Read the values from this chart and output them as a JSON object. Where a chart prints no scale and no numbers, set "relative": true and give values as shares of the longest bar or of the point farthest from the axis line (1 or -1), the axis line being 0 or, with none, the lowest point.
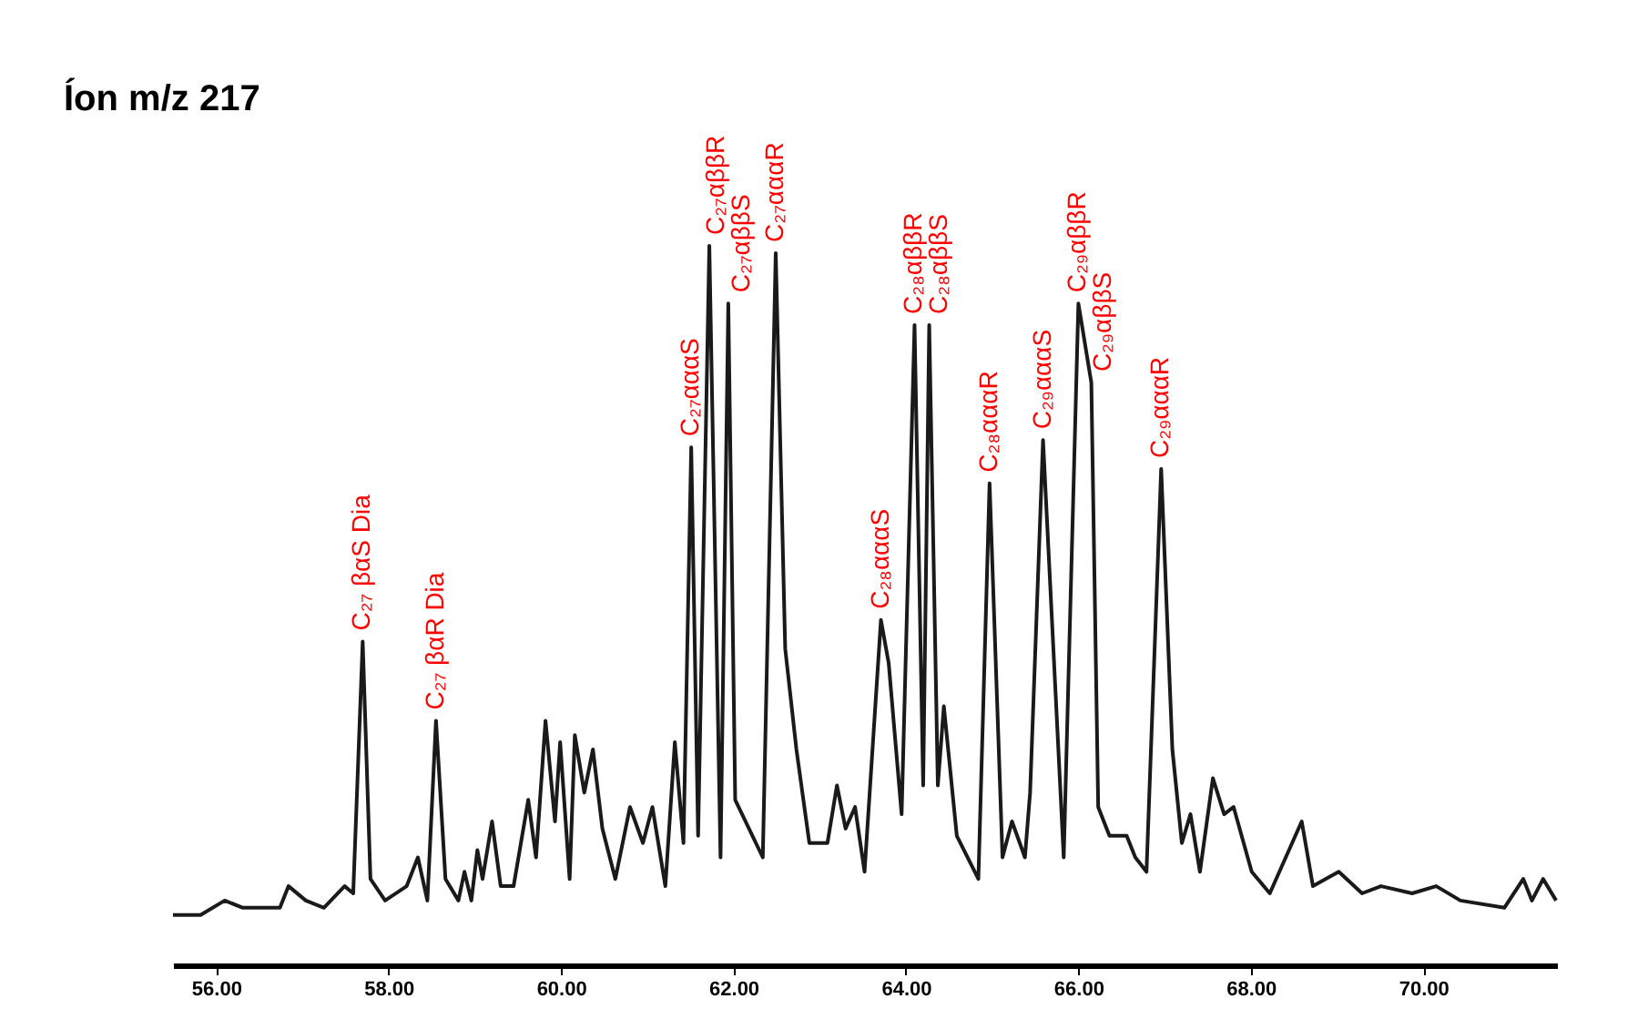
{
  "chart_data": {
    "type": "line",
    "title": "Íon m/z 217",
    "relative": true,
    "color": "#1a1a1a",
    "grid": false,
    "marker": "none",
    "line_style": "solid",
    "xlim": [
      55.5,
      71.55
    ],
    "xticks": [
      {
        "value": 56,
        "label": "56.00"
      },
      {
        "value": 58,
        "label": "58.00"
      },
      {
        "value": 60,
        "label": "60.00"
      },
      {
        "value": 62,
        "label": "62.00"
      },
      {
        "value": 64,
        "label": "64.00"
      },
      {
        "value": 66,
        "label": "66.00"
      },
      {
        "value": 68,
        "label": "68.00"
      },
      {
        "value": 70,
        "label": "70.00"
      }
    ],
    "tick_labels": "x",
    "x": [
      55.5,
      55.82,
      56.1,
      56.31,
      56.52,
      56.74,
      56.84,
      57.04,
      57.25,
      57.49,
      57.59,
      57.7,
      57.79,
      57.96,
      58.21,
      58.34,
      58.45,
      58.55,
      58.66,
      58.81,
      58.88,
      58.96,
      59.03,
      59.09,
      59.2,
      59.3,
      59.45,
      59.62,
      59.71,
      59.82,
      59.93,
      59.99,
      60.1,
      60.16,
      60.27,
      60.37,
      60.48,
      60.63,
      60.8,
      60.95,
      61.06,
      61.21,
      61.32,
      61.42,
      61.51,
      61.59,
      61.72,
      61.85,
      61.94,
      62.02,
      62.34,
      62.49,
      62.6,
      62.73,
      62.88,
      63.09,
      63.2,
      63.3,
      63.41,
      63.52,
      63.71,
      63.8,
      63.95,
      64.1,
      64.2,
      64.27,
      64.37,
      64.44,
      64.59,
      64.84,
      64.97,
      65.12,
      65.23,
      65.38,
      65.44,
      65.59,
      65.83,
      66.0,
      66.15,
      66.23,
      66.36,
      66.56,
      66.66,
      66.79,
      66.96,
      67.09,
      67.2,
      67.3,
      67.41,
      67.56,
      67.69,
      67.8,
      68.01,
      68.22,
      68.59,
      68.72,
      69.02,
      69.29,
      69.51,
      69.87,
      70.15,
      70.43,
      70.94,
      71.16,
      71.26,
      71.39,
      71.54
    ],
    "values": [
      0.07,
      0.07,
      0.09,
      0.08,
      0.08,
      0.08,
      0.11,
      0.09,
      0.08,
      0.11,
      0.1,
      0.45,
      0.12,
      0.09,
      0.11,
      0.15,
      0.09,
      0.34,
      0.12,
      0.09,
      0.13,
      0.09,
      0.16,
      0.12,
      0.2,
      0.11,
      0.11,
      0.23,
      0.15,
      0.34,
      0.2,
      0.31,
      0.12,
      0.32,
      0.24,
      0.3,
      0.19,
      0.12,
      0.22,
      0.17,
      0.22,
      0.11,
      0.31,
      0.17,
      0.72,
      0.18,
      1.0,
      0.15,
      0.92,
      0.23,
      0.15,
      0.99,
      0.44,
      0.3,
      0.17,
      0.17,
      0.25,
      0.19,
      0.22,
      0.13,
      0.48,
      0.42,
      0.21,
      0.89,
      0.25,
      0.89,
      0.25,
      0.36,
      0.18,
      0.12,
      0.67,
      0.15,
      0.2,
      0.15,
      0.24,
      0.73,
      0.15,
      0.92,
      0.81,
      0.22,
      0.18,
      0.18,
      0.15,
      0.13,
      0.69,
      0.3,
      0.17,
      0.21,
      0.13,
      0.26,
      0.21,
      0.22,
      0.13,
      0.1,
      0.2,
      0.11,
      0.13,
      0.1,
      0.11,
      0.1,
      0.11,
      0.09,
      0.08,
      0.12,
      0.09,
      0.12,
      0.09
    ],
    "annotations": [
      {
        "text": "C₂₇ βαS Dia",
        "x": 57.7,
        "y": 0.45
      },
      {
        "text": "C₂₇ βαR Dia",
        "x": 58.55,
        "y": 0.34
      },
      {
        "text": "C₂₇αααS",
        "x": 61.51,
        "y": 0.72
      },
      {
        "text": "C₂₇αββR",
        "x": 61.72,
        "y": 1.0
      },
      {
        "text": "C₂₇αββS",
        "x": 61.94,
        "y": 0.92
      },
      {
        "text": "C₂₇αααR",
        "x": 62.49,
        "y": 0.99
      },
      {
        "text": "C₂₈αααS",
        "x": 63.71,
        "y": 0.48
      },
      {
        "text": "C₂₈αββR",
        "x": 64.1,
        "y": 0.89
      },
      {
        "text": "C₂₈αββS",
        "x": 64.27,
        "y": 0.89
      },
      {
        "text": "C₂₈αααR",
        "x": 64.97,
        "y": 0.67
      },
      {
        "text": "C₂₉αααS",
        "x": 65.59,
        "y": 0.73
      },
      {
        "text": "C₂₉αββR",
        "x": 66.0,
        "y": 0.92
      },
      {
        "text": "C₂₉αββS",
        "x": 66.15,
        "y": 0.81
      },
      {
        "text": "C₂₉αααR",
        "x": 66.96,
        "y": 0.69
      }
    ]
  }
}
